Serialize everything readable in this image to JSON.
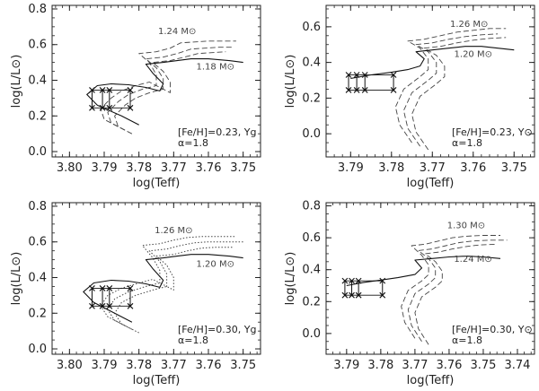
{
  "chart_data": [
    {
      "type": "line",
      "xlabel": "log(Teff)",
      "ylabel": "log(L/L⊙)",
      "xlim": [
        3.805,
        3.745
      ],
      "ylim": [
        -0.03,
        0.82
      ],
      "xticks": [
        3.8,
        3.79,
        3.78,
        3.77,
        3.76,
        3.75
      ],
      "xtick_labels": [
        "3.80",
        "3.79",
        "3.78",
        "3.77",
        "3.76",
        "3.75"
      ],
      "yticks": [
        0.0,
        0.2,
        0.4,
        0.6,
        0.8
      ],
      "ytick_labels": [
        "0.0",
        "0.2",
        "0.4",
        "0.6",
        "0.8"
      ],
      "grid": false,
      "annotation": {
        "line1": "[Fe/H]=0.23, Yg",
        "line2": "α=1.8"
      },
      "mass_labels": [
        {
          "text": "1.24 M⊙",
          "x": 3.769,
          "y": 0.66
        },
        {
          "text": "1.18 M⊙",
          "x": 3.758,
          "y": 0.46
        }
      ],
      "series": [
        {
          "style": "dashed",
          "x": [
            3.786,
            3.79,
            3.791,
            3.788,
            3.785,
            3.781,
            3.777,
            3.775,
            3.775,
            3.777,
            3.78,
            3.775,
            3.771,
            3.768,
            3.764,
            3.76,
            3.756,
            3.752
          ],
          "y": [
            0.14,
            0.18,
            0.24,
            0.3,
            0.34,
            0.37,
            0.39,
            0.37,
            0.43,
            0.5,
            0.55,
            0.56,
            0.58,
            0.61,
            0.615,
            0.62,
            0.62,
            0.62
          ]
        },
        {
          "style": "dashed",
          "x": [
            3.784,
            3.788,
            3.789,
            3.786,
            3.783,
            3.779,
            3.775,
            3.773,
            3.773,
            3.775,
            3.778,
            3.773,
            3.769,
            3.765,
            3.761,
            3.757,
            3.753
          ],
          "y": [
            0.12,
            0.16,
            0.22,
            0.28,
            0.32,
            0.35,
            0.37,
            0.35,
            0.41,
            0.47,
            0.52,
            0.53,
            0.55,
            0.575,
            0.58,
            0.585,
            0.585
          ]
        },
        {
          "style": "dashed",
          "x": [
            3.782,
            3.786,
            3.787,
            3.784,
            3.781,
            3.777,
            3.773,
            3.771,
            3.771,
            3.773,
            3.776,
            3.771,
            3.767,
            3.763,
            3.759,
            3.755
          ],
          "y": [
            0.1,
            0.14,
            0.2,
            0.26,
            0.3,
            0.33,
            0.35,
            0.33,
            0.39,
            0.45,
            0.5,
            0.51,
            0.53,
            0.55,
            0.555,
            0.56
          ]
        },
        {
          "style": "solid",
          "x": [
            3.78,
            3.785,
            3.792,
            3.795,
            3.792,
            3.788,
            3.783,
            3.778,
            3.774,
            3.773,
            3.776,
            3.778,
            3.773,
            3.769,
            3.765,
            3.76,
            3.754,
            3.75
          ],
          "y": [
            0.15,
            0.2,
            0.26,
            0.32,
            0.37,
            0.38,
            0.375,
            0.36,
            0.34,
            0.38,
            0.44,
            0.49,
            0.5,
            0.51,
            0.52,
            0.52,
            0.51,
            0.5
          ]
        }
      ],
      "track_markers": {
        "x": [
          3.7935,
          3.7905,
          3.7885,
          3.7825
        ],
        "y_lower": [
          0.245,
          0.245,
          0.245,
          0.245
        ],
        "y_upper": [
          0.345,
          0.345,
          0.345,
          0.345
        ]
      }
    },
    {
      "type": "line",
      "xlabel": "log(Teff)",
      "ylabel": "log(L/L⊙)",
      "xlim": [
        3.796,
        3.745
      ],
      "ylim": [
        -0.13,
        0.72
      ],
      "xticks": [
        3.79,
        3.78,
        3.77,
        3.76,
        3.75
      ],
      "xtick_labels": [
        "3.79",
        "3.78",
        "3.77",
        "3.76",
        "3.75"
      ],
      "yticks": [
        0.0,
        0.2,
        0.4,
        0.6
      ],
      "ytick_labels": [
        "0.0",
        "0.2",
        "0.4",
        "0.6"
      ],
      "grid": false,
      "annotation": {
        "line1": "[Fe/H]=0.23, Y⊙",
        "line2": "α=1.8"
      },
      "mass_labels": [
        {
          "text": "1.26 M⊙",
          "x": 3.761,
          "y": 0.6
        },
        {
          "text": "1.20 M⊙",
          "x": 3.76,
          "y": 0.43
        }
      ],
      "series": [
        {
          "style": "dashed",
          "x": [
            3.775,
            3.778,
            3.779,
            3.777,
            3.773,
            3.771,
            3.771,
            3.773,
            3.776,
            3.772,
            3.768,
            3.764,
            3.76,
            3.756,
            3.752
          ],
          "y": [
            -0.05,
            0.05,
            0.15,
            0.25,
            0.32,
            0.36,
            0.42,
            0.48,
            0.52,
            0.53,
            0.55,
            0.57,
            0.58,
            0.59,
            0.59
          ]
        },
        {
          "style": "dashed",
          "x": [
            3.773,
            3.776,
            3.777,
            3.775,
            3.771,
            3.769,
            3.769,
            3.771,
            3.774,
            3.77,
            3.766,
            3.762,
            3.758,
            3.754
          ],
          "y": [
            -0.07,
            0.03,
            0.13,
            0.23,
            0.3,
            0.34,
            0.4,
            0.46,
            0.5,
            0.51,
            0.53,
            0.545,
            0.555,
            0.56
          ]
        },
        {
          "style": "dashed",
          "x": [
            3.771,
            3.774,
            3.775,
            3.773,
            3.769,
            3.767,
            3.767,
            3.769,
            3.772,
            3.768,
            3.764,
            3.76,
            3.756,
            3.752
          ],
          "y": [
            -0.09,
            0.01,
            0.11,
            0.21,
            0.28,
            0.32,
            0.38,
            0.44,
            0.48,
            0.49,
            0.51,
            0.525,
            0.535,
            0.54
          ]
        },
        {
          "style": "solid",
          "x": [
            3.79,
            3.785,
            3.78,
            3.776,
            3.773,
            3.772,
            3.774,
            3.77,
            3.766,
            3.762,
            3.758,
            3.754,
            3.75
          ],
          "y": [
            0.31,
            0.33,
            0.345,
            0.36,
            0.38,
            0.42,
            0.46,
            0.47,
            0.48,
            0.49,
            0.49,
            0.48,
            0.47
          ]
        }
      ],
      "track_markers": {
        "x": [
          3.7905,
          3.7885,
          3.7865,
          3.7795
        ],
        "y_lower": [
          0.245,
          0.245,
          0.245,
          0.245
        ],
        "y_upper": [
          0.33,
          0.33,
          0.33,
          0.33
        ]
      }
    },
    {
      "type": "line",
      "xlabel": "log(Teff)",
      "ylabel": "log(L/L⊙)",
      "xlim": [
        3.805,
        3.745
      ],
      "ylim": [
        -0.03,
        0.82
      ],
      "xticks": [
        3.8,
        3.79,
        3.78,
        3.77,
        3.76,
        3.75
      ],
      "xtick_labels": [
        "3.80",
        "3.79",
        "3.78",
        "3.77",
        "3.76",
        "3.75"
      ],
      "yticks": [
        0.0,
        0.2,
        0.4,
        0.6,
        0.8
      ],
      "ytick_labels": [
        "0.0",
        "0.2",
        "0.4",
        "0.6",
        "0.8"
      ],
      "grid": false,
      "annotation": {
        "line1": "[Fe/H]=0.30, Yg",
        "line2": "α=1.8"
      },
      "mass_labels": [
        {
          "text": "1.26 M⊙",
          "x": 3.77,
          "y": 0.65
        },
        {
          "text": "1.20 M⊙",
          "x": 3.758,
          "y": 0.46
        }
      ],
      "series": [
        {
          "style": "dotted",
          "x": [
            3.784,
            3.789,
            3.791,
            3.789,
            3.785,
            3.78,
            3.776,
            3.774,
            3.774,
            3.776,
            3.779,
            3.774,
            3.77,
            3.766,
            3.762,
            3.757,
            3.752
          ],
          "y": [
            0.13,
            0.18,
            0.24,
            0.3,
            0.34,
            0.37,
            0.39,
            0.37,
            0.44,
            0.51,
            0.58,
            0.59,
            0.61,
            0.625,
            0.63,
            0.63,
            0.63
          ]
        },
        {
          "style": "dotted",
          "x": [
            3.782,
            3.787,
            3.789,
            3.787,
            3.783,
            3.778,
            3.774,
            3.772,
            3.772,
            3.774,
            3.777,
            3.772,
            3.768,
            3.764,
            3.76,
            3.755,
            3.75
          ],
          "y": [
            0.11,
            0.16,
            0.22,
            0.28,
            0.32,
            0.35,
            0.37,
            0.35,
            0.42,
            0.49,
            0.55,
            0.56,
            0.58,
            0.595,
            0.6,
            0.6,
            0.6
          ]
        },
        {
          "style": "dotted",
          "x": [
            3.78,
            3.785,
            3.787,
            3.785,
            3.781,
            3.776,
            3.772,
            3.77,
            3.77,
            3.772,
            3.775,
            3.77,
            3.766,
            3.762,
            3.758,
            3.753
          ],
          "y": [
            0.09,
            0.14,
            0.2,
            0.26,
            0.3,
            0.33,
            0.35,
            0.33,
            0.4,
            0.47,
            0.52,
            0.53,
            0.55,
            0.565,
            0.57,
            0.57
          ]
        },
        {
          "style": "solid",
          "x": [
            3.782,
            3.787,
            3.793,
            3.796,
            3.793,
            3.788,
            3.783,
            3.778,
            3.774,
            3.773,
            3.776,
            3.778,
            3.773,
            3.769,
            3.765,
            3.76,
            3.754,
            3.75
          ],
          "y": [
            0.15,
            0.2,
            0.26,
            0.32,
            0.37,
            0.385,
            0.38,
            0.365,
            0.345,
            0.385,
            0.45,
            0.5,
            0.51,
            0.52,
            0.53,
            0.53,
            0.52,
            0.51
          ]
        }
      ],
      "track_markers": {
        "x": [
          3.7935,
          3.7905,
          3.7885,
          3.7825
        ],
        "y_lower": [
          0.24,
          0.24,
          0.24,
          0.24
        ],
        "y_upper": [
          0.34,
          0.34,
          0.34,
          0.34
        ]
      }
    },
    {
      "type": "line",
      "xlabel": "log(Teff)",
      "ylabel": "log(L/L⊙)",
      "xlim": [
        3.796,
        3.735
      ],
      "ylim": [
        -0.13,
        0.82
      ],
      "xticks": [
        3.79,
        3.78,
        3.77,
        3.76,
        3.75,
        3.74
      ],
      "xtick_labels": [
        "3.79",
        "3.78",
        "3.77",
        "3.76",
        "3.75",
        "3.74"
      ],
      "yticks": [
        0.0,
        0.2,
        0.4,
        0.6,
        0.8
      ],
      "ytick_labels": [
        "0.0",
        "0.2",
        "0.4",
        "0.6",
        "0.8"
      ],
      "grid": false,
      "annotation": {
        "line1": "[Fe/H]=0.30, Y⊙",
        "line2": "α=1.8"
      },
      "mass_labels": [
        {
          "text": "1.30 M⊙",
          "x": 3.755,
          "y": 0.66
        },
        {
          "text": "1.24 M⊙",
          "x": 3.753,
          "y": 0.45
        }
      ],
      "series": [
        {
          "style": "dashed",
          "x": [
            3.77,
            3.773,
            3.774,
            3.772,
            3.768,
            3.766,
            3.766,
            3.768,
            3.771,
            3.767,
            3.763,
            3.759,
            3.755,
            3.75,
            3.745
          ],
          "y": [
            -0.03,
            0.07,
            0.17,
            0.27,
            0.33,
            0.37,
            0.43,
            0.49,
            0.55,
            0.56,
            0.58,
            0.6,
            0.61,
            0.615,
            0.615
          ]
        },
        {
          "style": "dashed",
          "x": [
            3.768,
            3.771,
            3.772,
            3.77,
            3.766,
            3.764,
            3.764,
            3.766,
            3.769,
            3.765,
            3.761,
            3.757,
            3.753,
            3.748,
            3.743
          ],
          "y": [
            -0.05,
            0.05,
            0.15,
            0.25,
            0.31,
            0.35,
            0.41,
            0.47,
            0.52,
            0.53,
            0.55,
            0.57,
            0.58,
            0.585,
            0.585
          ]
        },
        {
          "style": "dashed",
          "x": [
            3.766,
            3.769,
            3.77,
            3.768,
            3.764,
            3.762,
            3.762,
            3.764,
            3.767,
            3.763,
            3.759,
            3.755,
            3.751,
            3.746
          ],
          "y": [
            -0.07,
            0.03,
            0.13,
            0.23,
            0.29,
            0.33,
            0.39,
            0.45,
            0.5,
            0.51,
            0.53,
            0.545,
            0.555,
            0.56
          ]
        },
        {
          "style": "solid",
          "x": [
            3.79,
            3.785,
            3.78,
            3.775,
            3.77,
            3.768,
            3.77,
            3.765,
            3.76,
            3.755,
            3.75,
            3.745
          ],
          "y": [
            0.3,
            0.32,
            0.335,
            0.35,
            0.37,
            0.41,
            0.46,
            0.47,
            0.48,
            0.485,
            0.48,
            0.47
          ]
        }
      ],
      "track_markers": {
        "x": [
          3.7905,
          3.7885,
          3.7865,
          3.7795
        ],
        "y_lower": [
          0.24,
          0.24,
          0.24,
          0.24
        ],
        "y_upper": [
          0.33,
          0.33,
          0.33,
          0.33
        ]
      }
    }
  ]
}
